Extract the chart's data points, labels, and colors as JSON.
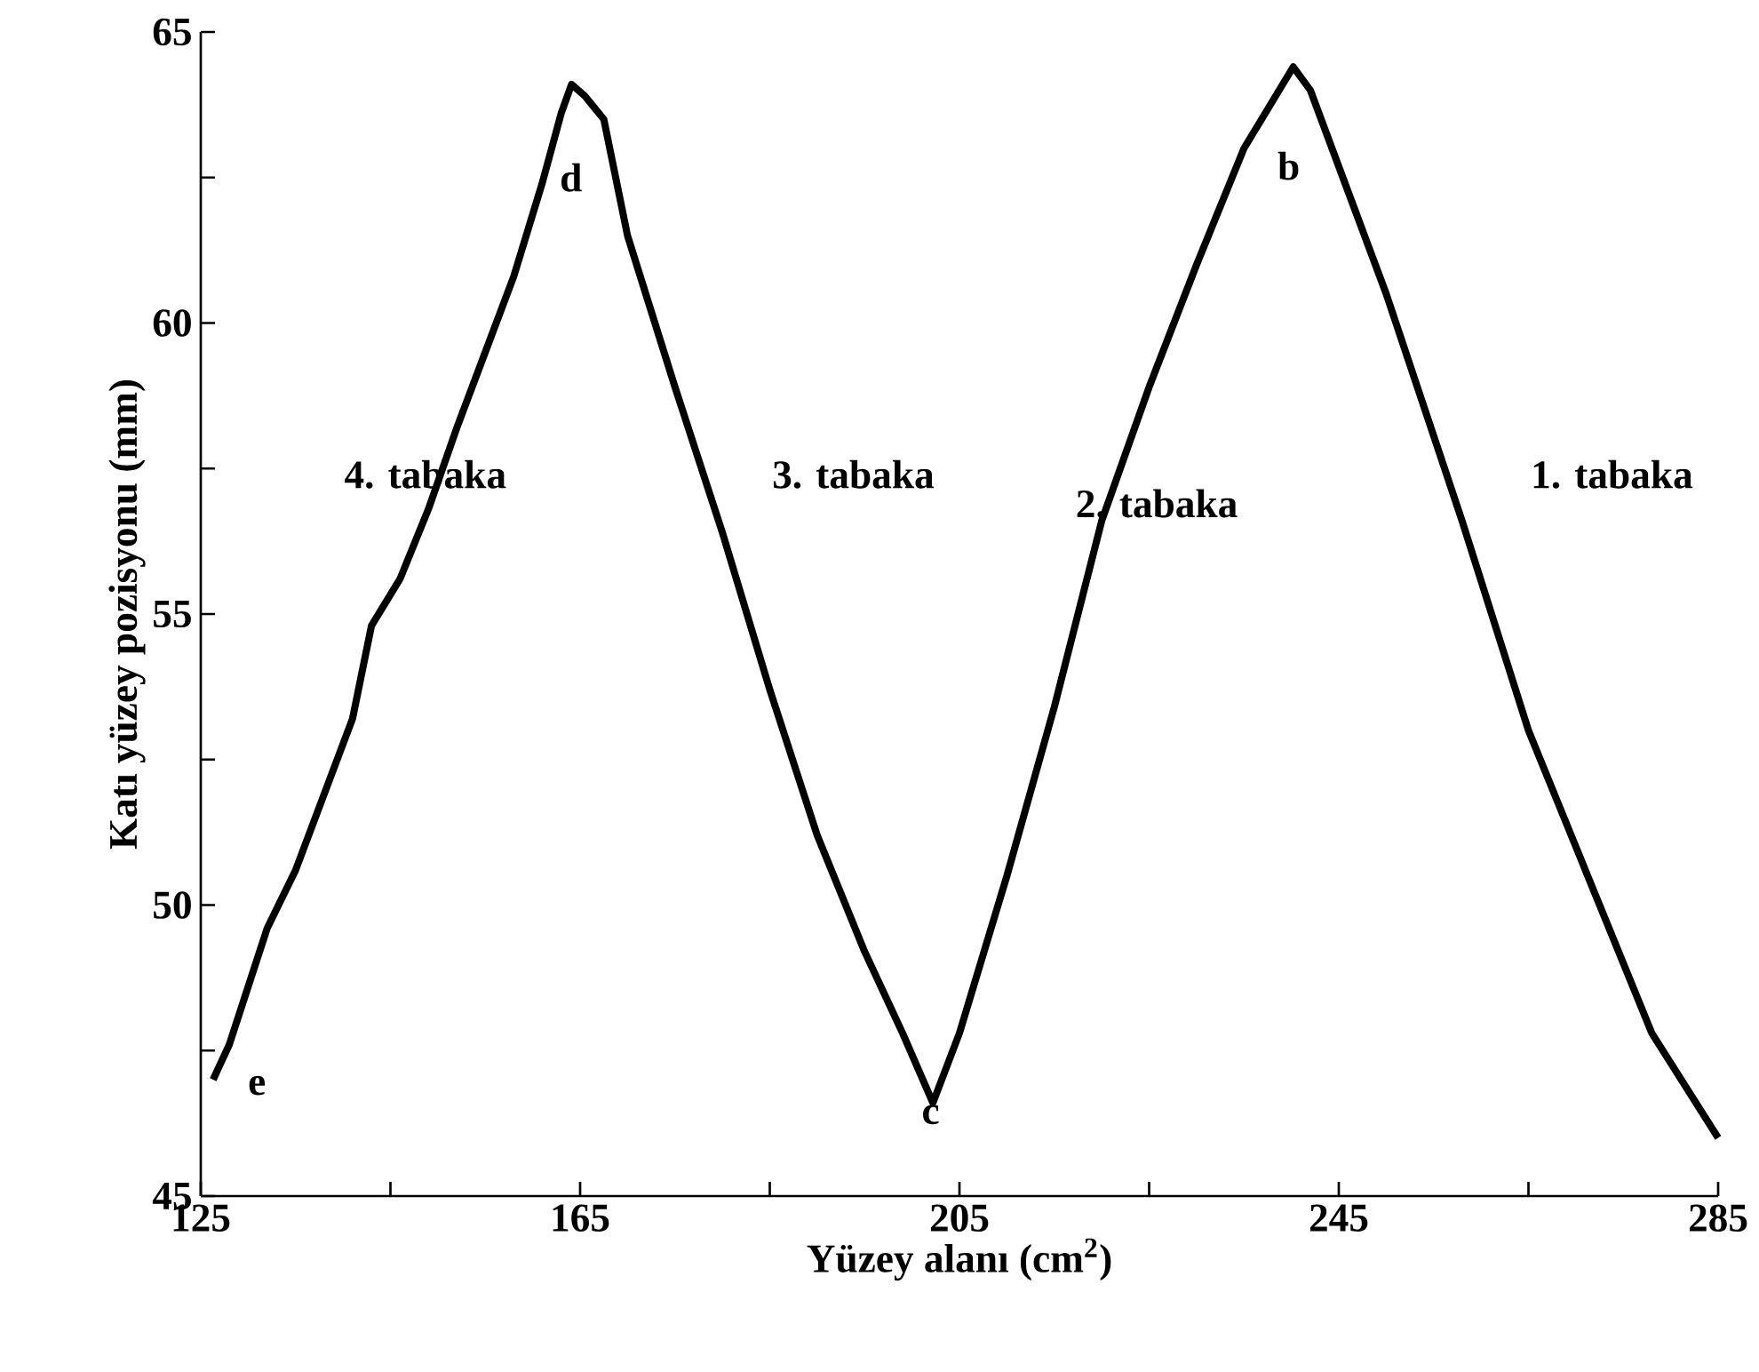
{
  "chart_data": {
    "type": "line",
    "xlabel": "Yüzey alanı (cm$^{2}$)",
    "ylabel": "Katı yüzey pozisyonu (mm)",
    "x": [
      126.3,
      128,
      130,
      132,
      135,
      138,
      141,
      143,
      146,
      149,
      152,
      155,
      158,
      161,
      163,
      164.1,
      165.5,
      167.5,
      170,
      175,
      180,
      185,
      190,
      195,
      199,
      202.2,
      205,
      210,
      215,
      220,
      225,
      230,
      235,
      240.2,
      242,
      250,
      258,
      265,
      272,
      278,
      285
    ],
    "values": [
      47.0,
      47.6,
      48.6,
      49.6,
      50.6,
      51.9,
      53.2,
      54.8,
      55.6,
      56.8,
      58.2,
      59.5,
      60.8,
      62.4,
      63.6,
      64.1,
      63.9,
      63.5,
      61.5,
      58.9,
      56.4,
      53.7,
      51.2,
      49.2,
      47.8,
      46.6,
      47.8,
      50.5,
      53.4,
      56.6,
      58.9,
      61.0,
      63.0,
      64.4,
      64.0,
      60.5,
      56.6,
      53.0,
      50.2,
      47.8,
      46.0
    ],
    "color": "#000000",
    "line_style": "solid",
    "marker": "none",
    "grid": false,
    "xlim": [
      125,
      285
    ],
    "ylim": [
      45,
      65
    ],
    "xticks": [
      125,
      {
        "value": 145,
        "label": null
      },
      165,
      {
        "value": 185,
        "label": null
      },
      205,
      {
        "value": 225,
        "label": null
      },
      245,
      {
        "value": 265,
        "label": null
      },
      285
    ],
    "yticks": [
      45,
      {
        "value": 47.5,
        "label": null
      },
      50,
      {
        "value": 52.5,
        "label": null
      },
      55,
      {
        "value": 57.5,
        "label": null
      },
      60,
      {
        "value": 62.5,
        "label": null
      },
      65
    ],
    "annotations": [
      "e",
      "d",
      "c",
      "b",
      "4. tabaka",
      "3. tabaka",
      "2. tabaka",
      "1. tabaka"
    ]
  }
}
